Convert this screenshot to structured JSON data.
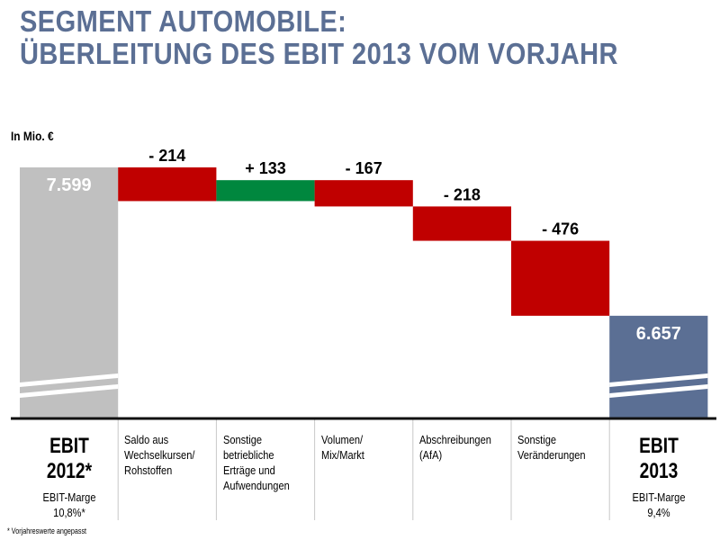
{
  "title_line1": "SEGMENT AUTOMOBILE:",
  "title_line2": "ÜBERLEITUNG DES EBIT 2013 VOM VORJAHR",
  "unit": "In Mio. €",
  "footnote": "* Vorjahreswerte angepasst",
  "colors": {
    "start": "#c0c0c0",
    "negative": "#c00000",
    "positive": "#00873e",
    "end": "#5b6f94",
    "title": "#5b6f94"
  },
  "chart_data": {
    "type": "waterfall",
    "axis_break": true,
    "categories": [
      "EBIT 2012*",
      "Saldo aus Wechselkursen/ Rohstoffen",
      "Sonstige betriebliche Erträge und Aufwendungen",
      "Volumen/ Mix/Markt",
      "Abschreibungen (AfA)",
      "Sonstige Veränderungen",
      "EBIT 2013"
    ],
    "values": [
      7599,
      -214,
      133,
      -167,
      -218,
      -476,
      6657
    ],
    "kinds": [
      "total",
      "delta",
      "delta",
      "delta",
      "delta",
      "delta",
      "total"
    ],
    "labels": [
      "7.599",
      "- 214",
      "+ 133",
      "- 167",
      "- 218",
      "- 476",
      "6.657"
    ]
  },
  "columns": {
    "start": {
      "big": "EBIT\n2012*",
      "margin": "EBIT-Marge\n10,8%*"
    },
    "mid": [
      "Saldo aus\nWechselkursen/\nRohstoffen",
      "Sonstige\nbetriebliche\nErträge und\nAufwendungen",
      "Volumen/\nMix/Markt",
      "Abschreibungen\n(AfA)",
      "Sonstige\nVeränderungen"
    ],
    "end": {
      "big": "EBIT\n2013",
      "margin": "EBIT-Marge\n9,4%"
    }
  }
}
